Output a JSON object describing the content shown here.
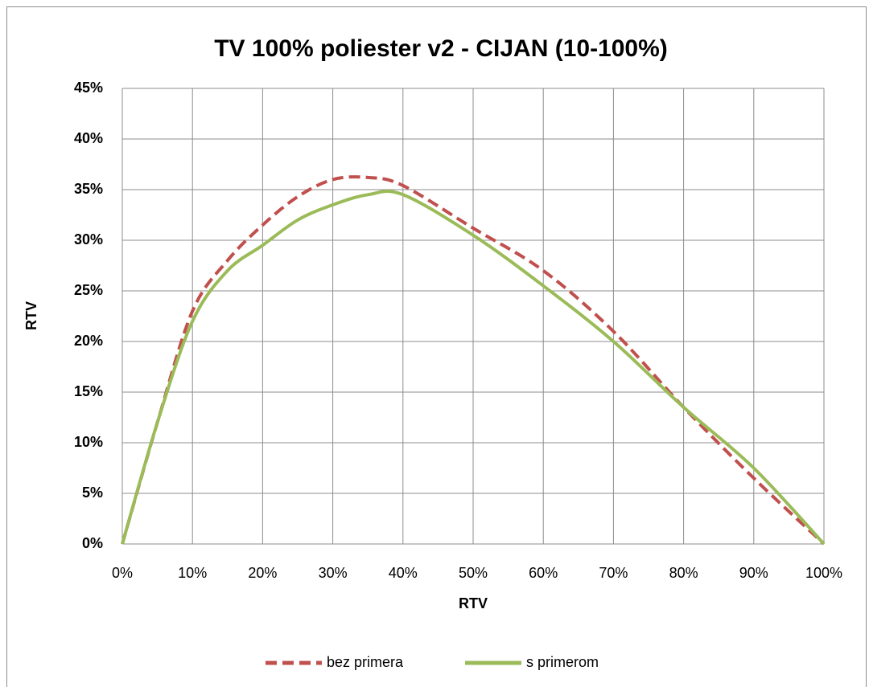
{
  "chart_data": {
    "type": "line",
    "title": "TV 100% poliester v2 - CIJAN (10-100%)",
    "x_label": "RTV",
    "y_label": "RTV",
    "x": [
      0,
      5,
      10,
      15,
      20,
      25,
      30,
      35,
      40,
      50,
      60,
      70,
      80,
      90,
      100
    ],
    "series": [
      {
        "name": "bez primera",
        "color": "#c0504d",
        "dashed": true,
        "values": [
          0,
          12,
          23,
          28,
          31.5,
          34.3,
          36,
          36.2,
          35.4,
          31.2,
          27,
          21,
          13.5,
          6.5,
          0
        ]
      },
      {
        "name": "s primerom",
        "color": "#9bbb59",
        "dashed": false,
        "values": [
          0,
          12,
          22,
          27,
          29.5,
          32,
          33.5,
          34.5,
          34.5,
          30.5,
          25.5,
          20,
          13.5,
          7.5,
          0
        ]
      }
    ],
    "xlim": [
      0,
      100
    ],
    "xticks": [
      {
        "value": 0,
        "label": "0%"
      },
      {
        "value": 10,
        "label": "10%"
      },
      {
        "value": 20,
        "label": "20%"
      },
      {
        "value": 30,
        "label": "30%"
      },
      {
        "value": 40,
        "label": "40%"
      },
      {
        "value": 50,
        "label": "50%"
      },
      {
        "value": 60,
        "label": "60%"
      },
      {
        "value": 70,
        "label": "70%"
      },
      {
        "value": 80,
        "label": "80%"
      },
      {
        "value": 90,
        "label": "90%"
      },
      {
        "value": 100,
        "label": "100%"
      }
    ],
    "ylim": [
      0,
      45
    ],
    "yticks": [
      {
        "value": 0,
        "label": "0%"
      },
      {
        "value": 5,
        "label": "5%"
      },
      {
        "value": 10,
        "label": "10%"
      },
      {
        "value": 15,
        "label": "15%"
      },
      {
        "value": 20,
        "label": "20%"
      },
      {
        "value": 25,
        "label": "25%"
      },
      {
        "value": 30,
        "label": "30%"
      },
      {
        "value": 35,
        "label": "35%"
      },
      {
        "value": 40,
        "label": "40%"
      },
      {
        "value": 45,
        "label": "45%"
      }
    ],
    "grid": true,
    "legend": "bottom"
  }
}
